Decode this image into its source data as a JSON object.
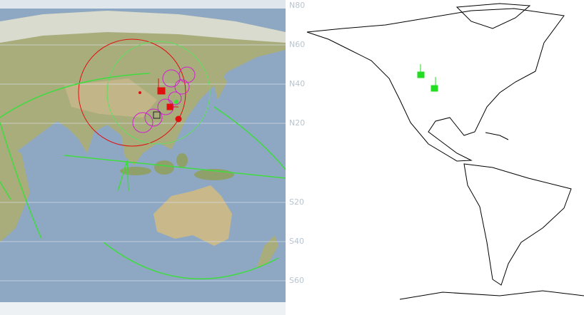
{
  "map": {
    "lat_labels": [
      "N80",
      "N60",
      "N40",
      "N20",
      "S20",
      "S40",
      "S60"
    ]
  }
}
